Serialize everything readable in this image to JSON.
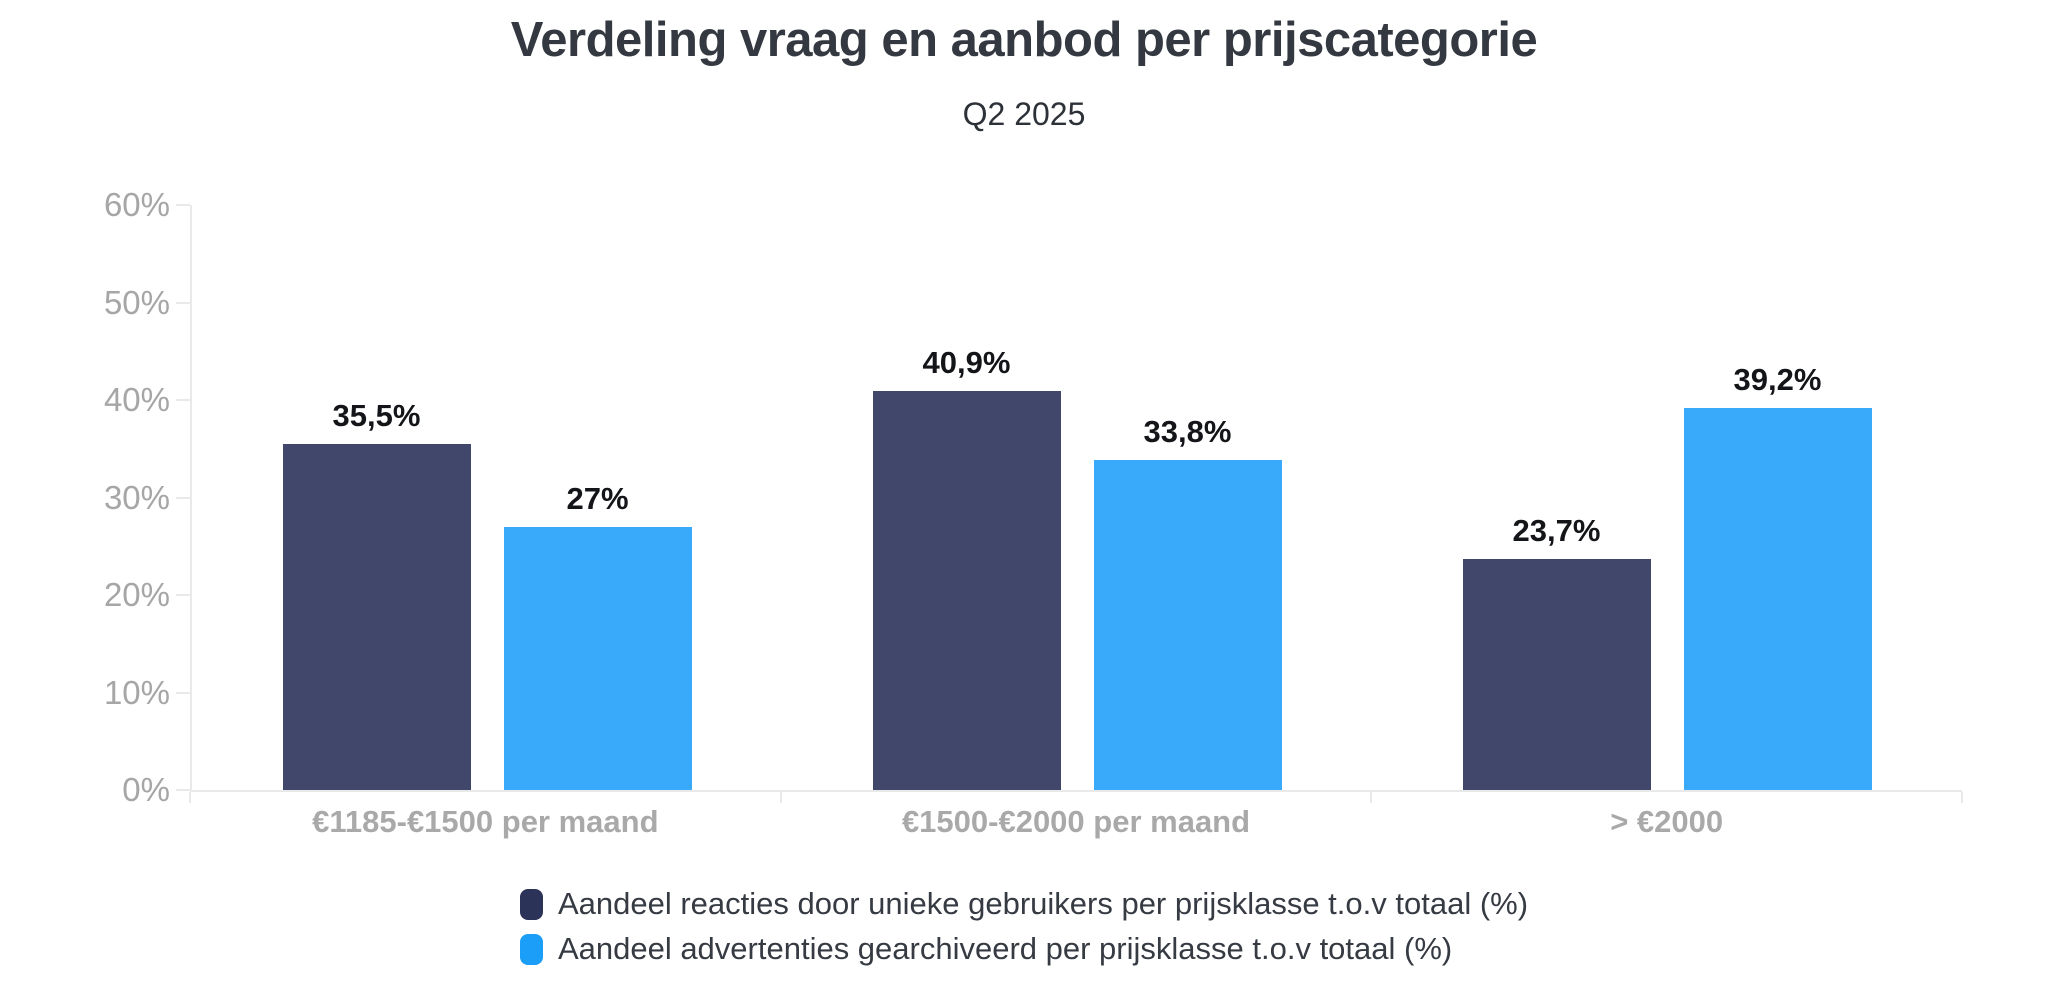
{
  "chart_data": {
    "type": "bar",
    "title": "Verdeling vraag en aanbod per prijscategorie",
    "subtitle": "Q2 2025",
    "categories": [
      "€1185-€1500 per maand",
      "€1500-€2000 per maand",
      "> €2000"
    ],
    "series": [
      {
        "name": "Aandeel reacties door unieke gebruikers per prijsklasse t.o.v totaal (%)",
        "values": [
          35.5,
          40.9,
          23.7
        ],
        "value_labels": [
          "35,5%",
          "40,9%",
          "23,7%"
        ],
        "bar_color": "#40476b",
        "legend_color": "#2c3359"
      },
      {
        "name": "Aandeel advertenties gearchiveerd per prijsklasse t.o.v totaal (%)",
        "values": [
          27,
          33.8,
          39.2
        ],
        "value_labels": [
          "27%",
          "33,8%",
          "39,2%"
        ],
        "bar_color": "#39a9f9",
        "legend_color": "#1b9ef8"
      }
    ],
    "ylim": [
      0,
      60
    ],
    "ytick_labels": [
      "0%",
      "10%",
      "20%",
      "30%",
      "40%",
      "50%",
      "60%"
    ],
    "grid": false,
    "legend_position": "bottom",
    "colors": {
      "axis": "#e9e9e9",
      "value_label": "#131519",
      "ytick_label": "#a6a6a6",
      "xtick_label": "#a9a9a9",
      "title": "#343941",
      "subtitle": "#2d3138",
      "legend_text": "#363b43",
      "background": "#ffffff"
    }
  }
}
